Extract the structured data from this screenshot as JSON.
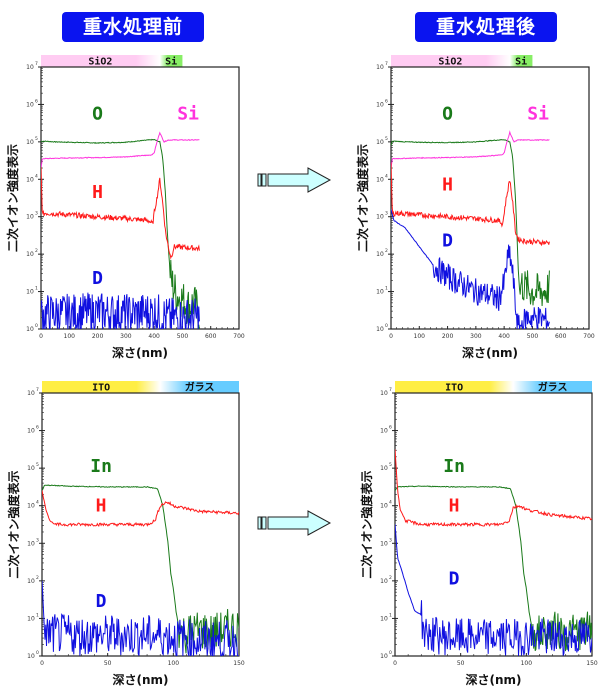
{
  "titles": {
    "before": "重水処理前",
    "after": "重水処理後"
  },
  "colors": {
    "O": "#1a7a1a",
    "Si": "#ff33dd",
    "H": "#ff1a1a",
    "D": "#1010e0",
    "In": "#1a7a1a",
    "title_bg": "#0a14f0",
    "arrow_fill": "#ccffff",
    "SiO2_layer": "#ffccf2",
    "Si_layer": "#88ee66",
    "ITO_layer": "#ffee44",
    "glass_layer": "#66ccff"
  },
  "chart_data": [
    {
      "id": "sio2-before",
      "type": "line",
      "title": "重水処理前",
      "xlabel": "深さ(nm)",
      "ylabel": "二次イオン強度表示",
      "xlim": [
        0,
        700
      ],
      "xticks": [
        0,
        100,
        200,
        300,
        400,
        500,
        600,
        700
      ],
      "ylim_log10": [
        0,
        7
      ],
      "yscale": "log",
      "yticks_exp": [
        0,
        1,
        2,
        3,
        4,
        5,
        6,
        7
      ],
      "layers": [
        {
          "label": "SiO2",
          "from": 0,
          "to": 420,
          "color": "#ffccf2"
        },
        {
          "label": "Si",
          "from": 420,
          "to": 500,
          "color": "#88ee66"
        }
      ],
      "series": [
        {
          "name": "O",
          "label_at": [
            200,
            5.6
          ],
          "points": [
            [
              0,
              5.0
            ],
            [
              5,
              5.02
            ],
            [
              50,
              5.0
            ],
            [
              100,
              4.99
            ],
            [
              200,
              4.97
            ],
            [
              300,
              4.99
            ],
            [
              380,
              5.05
            ],
            [
              400,
              5.06
            ],
            [
              420,
              5.0
            ],
            [
              430,
              4.6
            ],
            [
              440,
              3.6
            ],
            [
              445,
              2.8
            ],
            [
              450,
              2.2
            ],
            [
              455,
              1.7
            ],
            [
              460,
              1.3
            ],
            [
              480,
              0.9
            ],
            [
              500,
              0.8
            ],
            [
              520,
              0.6
            ],
            [
              540,
              0.7
            ],
            [
              560,
              0.4
            ]
          ],
          "noise_from": 455,
          "noise_amp": 0.55
        },
        {
          "name": "Si",
          "label_at": [
            520,
            5.6
          ],
          "points": [
            [
              0,
              4.3
            ],
            [
              5,
              4.55
            ],
            [
              50,
              4.56
            ],
            [
              100,
              4.57
            ],
            [
              200,
              4.58
            ],
            [
              300,
              4.6
            ],
            [
              390,
              4.65
            ],
            [
              400,
              4.7
            ],
            [
              410,
              5.0
            ],
            [
              420,
              5.25
            ],
            [
              435,
              5.0
            ],
            [
              450,
              5.05
            ],
            [
              560,
              5.05
            ]
          ]
        },
        {
          "name": "H",
          "label_at": [
            200,
            3.5
          ],
          "points": [
            [
              0,
              4.3
            ],
            [
              5,
              3.05
            ],
            [
              15,
              3.1
            ],
            [
              100,
              3.05
            ],
            [
              200,
              3.0
            ],
            [
              300,
              2.95
            ],
            [
              380,
              2.9
            ],
            [
              395,
              2.8
            ],
            [
              400,
              3.1
            ],
            [
              410,
              3.5
            ],
            [
              420,
              4.0
            ],
            [
              430,
              3.4
            ],
            [
              440,
              2.6
            ],
            [
              450,
              2.2
            ],
            [
              460,
              1.9
            ],
            [
              470,
              2.2
            ],
            [
              560,
              2.15
            ]
          ],
          "noise_from": 0,
          "noise_amp": 0.07
        },
        {
          "name": "D",
          "label_at": [
            200,
            1.2
          ],
          "points": [
            [
              0,
              0.4
            ],
            [
              100,
              0.4
            ],
            [
              200,
              0.45
            ],
            [
              300,
              0.4
            ],
            [
              400,
              0.45
            ],
            [
              450,
              0.3
            ],
            [
              500,
              0.3
            ],
            [
              560,
              0.3
            ]
          ],
          "noise_from": 0,
          "noise_amp": 0.55,
          "floor": 0
        }
      ]
    },
    {
      "id": "sio2-after",
      "type": "line",
      "title": "重水処理後",
      "xlabel": "深さ(nm)",
      "ylabel": "二次イオン強度表示",
      "xlim": [
        0,
        700
      ],
      "xticks": [
        0,
        100,
        200,
        300,
        400,
        500,
        600,
        700
      ],
      "ylim_log10": [
        0,
        7
      ],
      "yscale": "log",
      "yticks_exp": [
        0,
        1,
        2,
        3,
        4,
        5,
        6,
        7
      ],
      "layers": [
        {
          "label": "SiO2",
          "from": 0,
          "to": 420,
          "color": "#ffccf2"
        },
        {
          "label": "Si",
          "from": 420,
          "to": 500,
          "color": "#88ee66"
        }
      ],
      "series": [
        {
          "name": "O",
          "label_at": [
            200,
            5.6
          ],
          "points": [
            [
              0,
              4.9
            ],
            [
              5,
              5.02
            ],
            [
              50,
              5.0
            ],
            [
              100,
              4.99
            ],
            [
              200,
              4.98
            ],
            [
              300,
              5.0
            ],
            [
              380,
              5.05
            ],
            [
              400,
              5.06
            ],
            [
              420,
              5.0
            ],
            [
              430,
              4.6
            ],
            [
              440,
              3.5
            ],
            [
              445,
              2.6
            ],
            [
              450,
              1.6
            ],
            [
              455,
              1.0
            ],
            [
              460,
              1.2
            ],
            [
              500,
              1.0
            ],
            [
              540,
              1.0
            ],
            [
              560,
              1.1
            ]
          ],
          "noise_from": 455,
          "noise_amp": 0.5
        },
        {
          "name": "Si",
          "label_at": [
            520,
            5.6
          ],
          "points": [
            [
              0,
              4.3
            ],
            [
              5,
              4.55
            ],
            [
              50,
              4.56
            ],
            [
              100,
              4.57
            ],
            [
              200,
              4.58
            ],
            [
              300,
              4.6
            ],
            [
              390,
              4.65
            ],
            [
              400,
              4.7
            ],
            [
              410,
              5.0
            ],
            [
              420,
              5.25
            ],
            [
              435,
              5.0
            ],
            [
              450,
              5.05
            ],
            [
              560,
              5.05
            ]
          ]
        },
        {
          "name": "H",
          "label_at": [
            200,
            3.7
          ],
          "points": [
            [
              0,
              4.4
            ],
            [
              5,
              3.05
            ],
            [
              15,
              3.1
            ],
            [
              100,
              3.05
            ],
            [
              200,
              3.0
            ],
            [
              300,
              2.95
            ],
            [
              380,
              2.9
            ],
            [
              395,
              2.8
            ],
            [
              400,
              3.1
            ],
            [
              410,
              3.6
            ],
            [
              420,
              4.0
            ],
            [
              430,
              3.4
            ],
            [
              440,
              2.6
            ],
            [
              450,
              2.4
            ],
            [
              470,
              2.35
            ],
            [
              560,
              2.3
            ]
          ],
          "noise_from": 0,
          "noise_amp": 0.07
        },
        {
          "name": "D",
          "label_at": [
            200,
            2.2
          ],
          "points": [
            [
              0,
              3.2
            ],
            [
              10,
              2.9
            ],
            [
              50,
              2.7
            ],
            [
              100,
              2.2
            ],
            [
              150,
              1.7
            ],
            [
              200,
              1.4
            ],
            [
              250,
              1.2
            ],
            [
              300,
              1.0
            ],
            [
              350,
              0.9
            ],
            [
              380,
              0.8
            ],
            [
              400,
              1.2
            ],
            [
              410,
              1.8
            ],
            [
              420,
              2.0
            ],
            [
              430,
              1.5
            ],
            [
              440,
              0.6
            ],
            [
              450,
              0.0
            ],
            [
              480,
              0.3
            ],
            [
              520,
              0.3
            ],
            [
              560,
              0.2
            ]
          ],
          "noise_from": 150,
          "noise_amp": 0.35,
          "floor": 0
        }
      ]
    },
    {
      "id": "ito-before",
      "type": "line",
      "xlabel": "深さ(nm)",
      "ylabel": "二次イオン強度表示",
      "xlim": [
        0,
        150
      ],
      "xticks": [
        0,
        50,
        100,
        150
      ],
      "ylim_log10": [
        0,
        7
      ],
      "yscale": "log",
      "yticks_exp": [
        0,
        1,
        2,
        3,
        4,
        5,
        6,
        7
      ],
      "layers": [
        {
          "label": "ITO",
          "from": 0,
          "to": 90,
          "color": "#ffee44"
        },
        {
          "label": "ガラス",
          "from": 90,
          "to": 150,
          "color": "#66ccff"
        }
      ],
      "series": [
        {
          "name": "In",
          "label_at": [
            45,
            4.9
          ],
          "points": [
            [
              0,
              4.4
            ],
            [
              2,
              4.55
            ],
            [
              20,
              4.52
            ],
            [
              50,
              4.5
            ],
            [
              80,
              4.5
            ],
            [
              88,
              4.45
            ],
            [
              92,
              4.0
            ],
            [
              96,
              3.0
            ],
            [
              98,
              2.2
            ],
            [
              100,
              1.8
            ],
            [
              102,
              1.2
            ],
            [
              105,
              0.6
            ],
            [
              110,
              0.6
            ],
            [
              120,
              0.7
            ],
            [
              130,
              0.6
            ],
            [
              150,
              0.8
            ]
          ],
          "noise_from": 104,
          "noise_amp": 0.55
        },
        {
          "name": "H",
          "label_at": [
            45,
            3.85
          ],
          "points": [
            [
              0,
              4.4
            ],
            [
              3,
              3.9
            ],
            [
              6,
              3.6
            ],
            [
              10,
              3.5
            ],
            [
              30,
              3.5
            ],
            [
              60,
              3.5
            ],
            [
              80,
              3.5
            ],
            [
              86,
              3.6
            ],
            [
              90,
              4.0
            ],
            [
              95,
              4.1
            ],
            [
              100,
              4.0
            ],
            [
              120,
              3.85
            ],
            [
              150,
              3.8
            ]
          ],
          "noise_from": 10,
          "noise_amp": 0.04
        },
        {
          "name": "D",
          "label_at": [
            45,
            1.3
          ],
          "points": [
            [
              0,
              2.0
            ],
            [
              2,
              0.6
            ],
            [
              30,
              0.55
            ],
            [
              60,
              0.55
            ],
            [
              90,
              0.55
            ],
            [
              120,
              0.4
            ],
            [
              150,
              0.4
            ]
          ],
          "noise_from": 2,
          "noise_amp": 0.55,
          "floor": 0
        }
      ]
    },
    {
      "id": "ito-after",
      "type": "line",
      "xlabel": "深さ(nm)",
      "ylabel": "二次イオン強度表示",
      "xlim": [
        0,
        150
      ],
      "xticks": [
        0,
        50,
        100,
        150
      ],
      "ylim_log10": [
        0,
        7
      ],
      "yscale": "log",
      "yticks_exp": [
        0,
        1,
        2,
        3,
        4,
        5,
        6,
        7
      ],
      "layers": [
        {
          "label": "ITO",
          "from": 0,
          "to": 90,
          "color": "#ffee44"
        },
        {
          "label": "ガラス",
          "from": 90,
          "to": 150,
          "color": "#66ccff"
        }
      ],
      "series": [
        {
          "name": "In",
          "label_at": [
            45,
            4.9
          ],
          "points": [
            [
              0,
              4.4
            ],
            [
              2,
              4.5
            ],
            [
              20,
              4.52
            ],
            [
              50,
              4.5
            ],
            [
              80,
              4.5
            ],
            [
              88,
              4.45
            ],
            [
              92,
              4.0
            ],
            [
              96,
              3.0
            ],
            [
              98,
              2.2
            ],
            [
              100,
              1.8
            ],
            [
              102,
              1.2
            ],
            [
              105,
              0.6
            ],
            [
              110,
              0.6
            ],
            [
              120,
              0.7
            ],
            [
              130,
              0.6
            ],
            [
              150,
              0.7
            ]
          ],
          "noise_from": 104,
          "noise_amp": 0.5
        },
        {
          "name": "H",
          "label_at": [
            45,
            3.85
          ],
          "points": [
            [
              0,
              5.5
            ],
            [
              2,
              4.4
            ],
            [
              4,
              3.9
            ],
            [
              8,
              3.6
            ],
            [
              20,
              3.5
            ],
            [
              50,
              3.5
            ],
            [
              80,
              3.5
            ],
            [
              87,
              3.6
            ],
            [
              90,
              3.95
            ],
            [
              95,
              4.0
            ],
            [
              100,
              3.9
            ],
            [
              120,
              3.75
            ],
            [
              150,
              3.65
            ]
          ],
          "noise_from": 8,
          "noise_amp": 0.04
        },
        {
          "name": "D",
          "label_at": [
            45,
            1.9
          ],
          "points": [
            [
              0,
              3.5
            ],
            [
              2,
              2.6
            ],
            [
              5,
              2.3
            ],
            [
              10,
              1.7
            ],
            [
              15,
              1.2
            ],
            [
              20,
              1.1
            ],
            [
              22,
              0.6
            ],
            [
              40,
              0.5
            ],
            [
              60,
              0.5
            ],
            [
              90,
              0.5
            ],
            [
              110,
              0.5
            ],
            [
              150,
              0.5
            ]
          ],
          "noise_from": 20,
          "noise_amp": 0.5,
          "floor": 0
        }
      ]
    }
  ],
  "arrows": [
    {
      "name": "arrow-top"
    },
    {
      "name": "arrow-bottom"
    }
  ]
}
